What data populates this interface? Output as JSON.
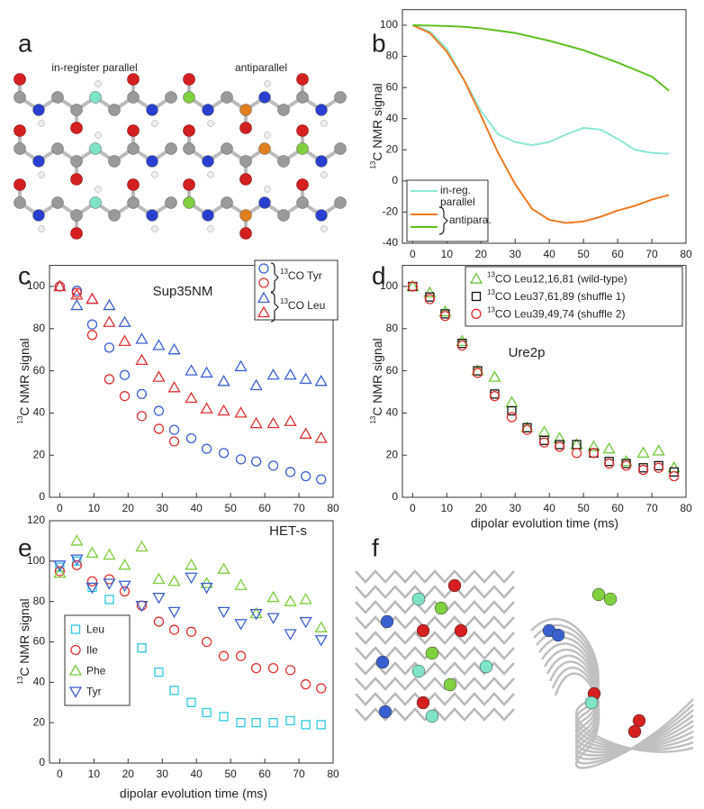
{
  "panel_a": {
    "letter": "a",
    "titles": [
      "in-register parallel",
      "antiparallel"
    ]
  },
  "panel_f": {
    "letter": "f"
  },
  "chart_data": [
    {
      "type": "line",
      "panel": "b",
      "y_label": "13C NMR signal",
      "x": [
        0,
        5,
        10,
        15,
        20,
        25,
        30,
        35,
        40,
        45,
        50,
        55,
        60,
        65,
        70,
        75
      ],
      "series": [
        {
          "name": "in-reg. parallel",
          "color": "#8ee6d4",
          "values": [
            100,
            96,
            85,
            65,
            45,
            30,
            25,
            23,
            25,
            30,
            34,
            33,
            27,
            20,
            18,
            17.5
          ]
        },
        {
          "color": "#f07a22",
          "values": [
            100,
            95,
            83,
            65,
            42,
            18,
            -2,
            -18,
            -25,
            -27,
            -26,
            -23,
            -19,
            -16,
            -12,
            -9
          ]
        },
        {
          "color": "#5fbf1f",
          "values": [
            100,
            99.8,
            99.5,
            99,
            98,
            96.5,
            95,
            92.5,
            90,
            87,
            84,
            80,
            76,
            71.5,
            67,
            58
          ]
        }
      ],
      "legend_group": {
        "label": "antipara."
      },
      "xlim": [
        -3,
        80
      ],
      "xticks": [
        0,
        10,
        20,
        30,
        40,
        50,
        60,
        70,
        80
      ],
      "ylim": [
        -40,
        110
      ],
      "yticks": [
        -40,
        -20,
        0,
        20,
        40,
        60,
        80,
        100
      ]
    },
    {
      "type": "scatter",
      "panel": "c",
      "title": "Sup35NM",
      "y_label": "13C NMR signal",
      "x": [
        0,
        5,
        9.5,
        14.5,
        19,
        24,
        29,
        33.5,
        38.5,
        43,
        48,
        53,
        57.5,
        62.5,
        67.5,
        72,
        76.5
      ],
      "series": [
        {
          "marker": "circle",
          "color": "#3a5fd0",
          "values": [
            100,
            98,
            82,
            71,
            58,
            49,
            41,
            32,
            28,
            23,
            21,
            18,
            17,
            15,
            12,
            10,
            8.5
          ]
        },
        {
          "marker": "circle",
          "color": "#e03030",
          "values": [
            100,
            97,
            77,
            56,
            48,
            38.5,
            32.5,
            26.5,
            null,
            null,
            null,
            null,
            null,
            null,
            null,
            null,
            null
          ]
        },
        {
          "marker": "triangle",
          "color": "#3a5fd0",
          "values": [
            100,
            91,
            94,
            91,
            83,
            75,
            72,
            70,
            60,
            59,
            55,
            62,
            53,
            58,
            58,
            56,
            55
          ]
        },
        {
          "marker": "triangle",
          "color": "#e03030",
          "values": [
            100,
            96,
            94,
            83,
            74,
            65,
            57,
            52,
            47,
            42,
            41,
            40,
            35,
            35,
            36,
            30,
            28
          ]
        }
      ],
      "legend": {
        "groups": [
          {
            "label": "13CO Tyr",
            "marker": "circle"
          },
          {
            "label": "13CO Leu",
            "marker": "triangle"
          }
        ]
      },
      "xlim": [
        -3,
        80
      ],
      "xticks": [
        0,
        10,
        20,
        30,
        40,
        50,
        60,
        70,
        80
      ],
      "ylim": [
        0,
        110
      ],
      "yticks": [
        0,
        20,
        40,
        60,
        80,
        100
      ]
    },
    {
      "type": "scatter",
      "panel": "d",
      "title": "Ure2p",
      "y_label": "13C NMR signal",
      "x_label": "dipolar evolution time (ms)",
      "x": [
        0,
        5,
        9.5,
        14.5,
        19,
        24,
        29,
        33.5,
        38.5,
        43,
        48,
        53,
        57.5,
        62.5,
        67.5,
        72,
        76.5
      ],
      "series": [
        {
          "name": "13CO Leu12,16,81 (wild-type)",
          "marker": "triangle",
          "color": "#6cc83a",
          "values": [
            100,
            97,
            88,
            74,
            60,
            57,
            45,
            33,
            31,
            28,
            25,
            24,
            23,
            17,
            21,
            22,
            14
          ]
        },
        {
          "name": "13CO Leu37,61,89 (shuffle 1)",
          "marker": "square",
          "color": "#111111",
          "values": [
            100,
            95,
            87,
            73,
            60,
            49,
            41,
            33,
            27,
            25,
            25,
            21,
            17,
            16,
            14,
            15,
            12
          ]
        },
        {
          "name": "13CO Leu39,49,74 (shuffle 2)",
          "marker": "circle",
          "color": "#e03030",
          "values": [
            100,
            94,
            86,
            72,
            59,
            48,
            38,
            32,
            26,
            24,
            21,
            21,
            16,
            15,
            13,
            14,
            10
          ]
        }
      ],
      "xlim": [
        -3,
        80
      ],
      "xticks": [
        0,
        10,
        20,
        30,
        40,
        50,
        60,
        70,
        80
      ],
      "ylim": [
        0,
        110
      ],
      "yticks": [
        0,
        20,
        40,
        60,
        80,
        100
      ]
    },
    {
      "type": "scatter",
      "panel": "e",
      "title": "HET-s",
      "y_label": "13C NMR signal",
      "x_label": "dipolar evolution time (ms)",
      "x": [
        0,
        5,
        9.5,
        14.5,
        19,
        24,
        29,
        33.5,
        38.5,
        43,
        48,
        53,
        57.5,
        62.5,
        67.5,
        72,
        76.5
      ],
      "series": [
        {
          "name": "Leu",
          "marker": "square",
          "color": "#30c8e0",
          "values": [
            97,
            100,
            87,
            81,
            70,
            57,
            45,
            36,
            30,
            25,
            23,
            20,
            20,
            20,
            21,
            19,
            19
          ]
        },
        {
          "name": "Ile",
          "marker": "circle",
          "color": "#e03030",
          "values": [
            95,
            98,
            90,
            91,
            85,
            78,
            70,
            66,
            65,
            60,
            53,
            53,
            47,
            47,
            46,
            39,
            37
          ]
        },
        {
          "name": "Phe",
          "marker": "triangle",
          "color": "#7ccc3a",
          "values": [
            94,
            110,
            104,
            103,
            98,
            107,
            91,
            90,
            98,
            89,
            96,
            88,
            74,
            82,
            80,
            81,
            67
          ]
        },
        {
          "name": "Tyr",
          "marker": "triangle-down",
          "color": "#3a5fd0",
          "values": [
            98,
            101,
            87,
            89,
            88,
            78,
            82,
            75,
            92,
            87,
            75,
            69,
            74,
            72,
            64,
            70,
            61
          ]
        }
      ],
      "xlim": [
        -3,
        80
      ],
      "xticks": [
        0,
        10,
        20,
        30,
        40,
        50,
        60,
        70,
        80
      ],
      "ylim": [
        0,
        120
      ],
      "yticks": [
        0,
        20,
        40,
        60,
        80,
        100,
        120
      ]
    }
  ]
}
